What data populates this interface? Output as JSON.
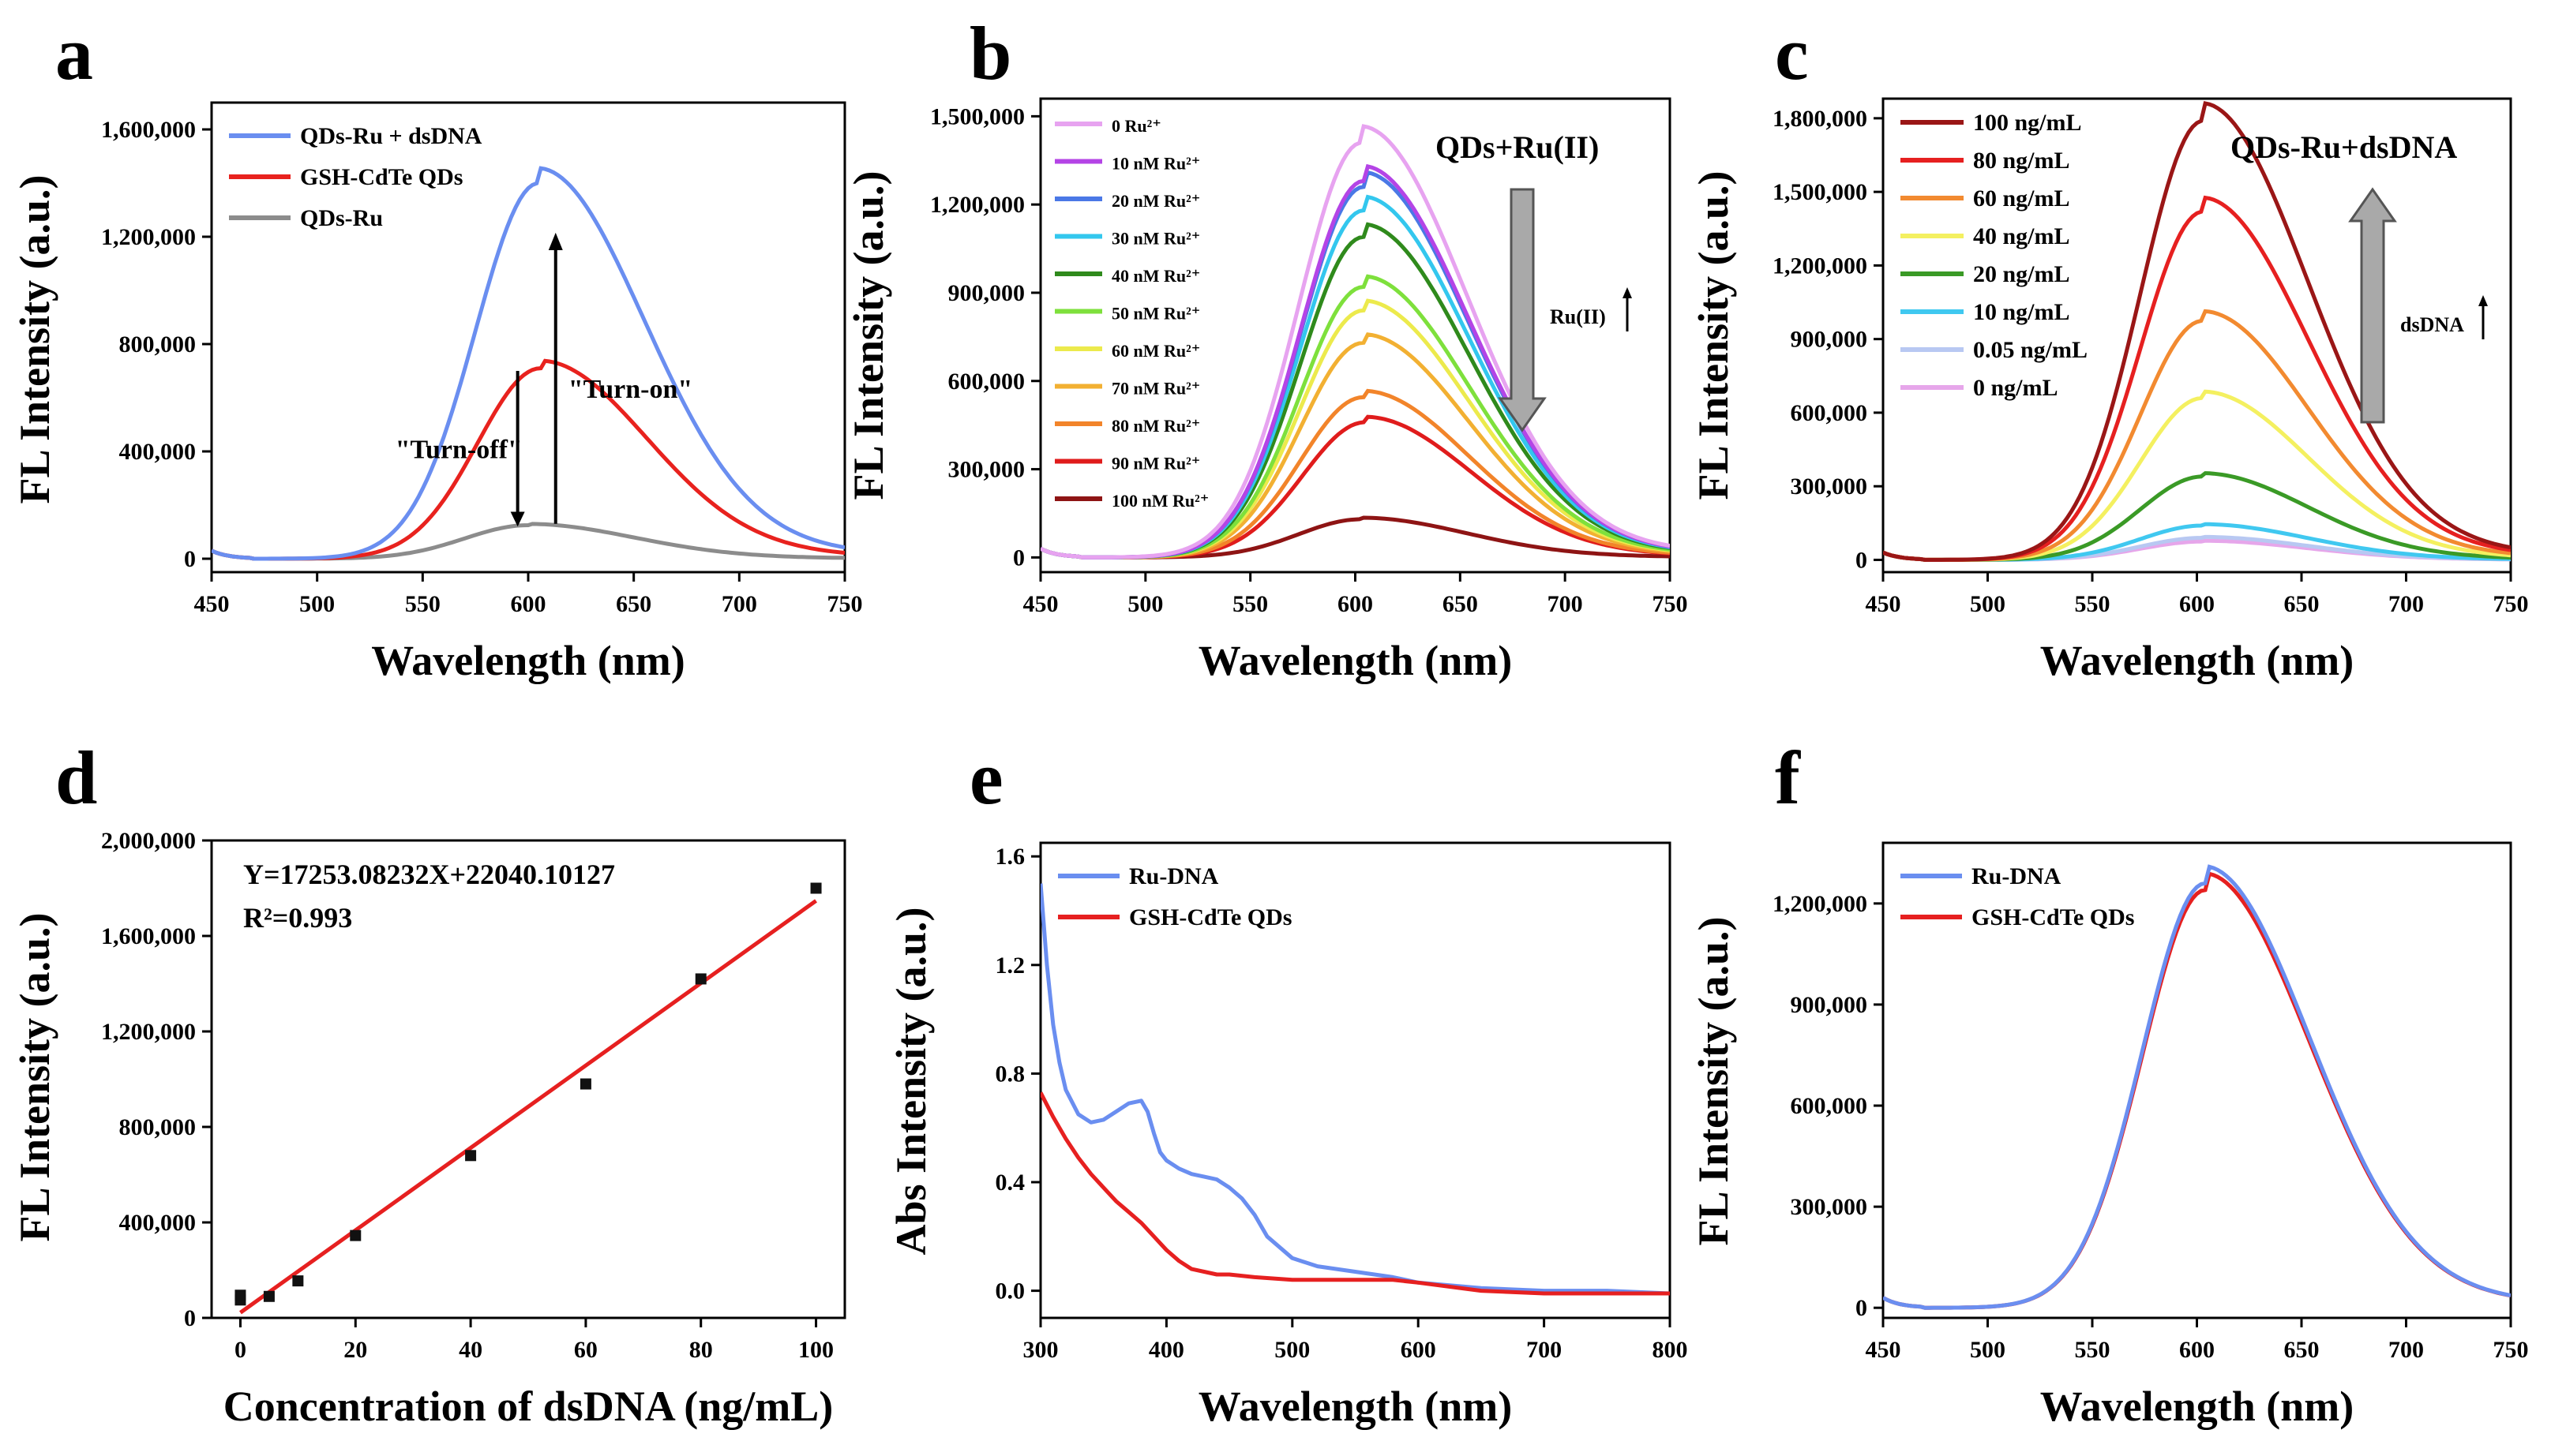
{
  "figure": {
    "panels": [
      {
        "id": "a",
        "letter": "a",
        "type": "line",
        "xlabel": "Wavelength (nm)",
        "ylabel": "FL Intensity (a.u.)",
        "xlim": [
          450,
          750
        ],
        "ylim": [
          -50000,
          1700000
        ],
        "xticks": [
          450,
          500,
          550,
          600,
          650,
          700,
          750
        ],
        "yticks": [
          0,
          400000,
          800000,
          1200000,
          1600000
        ],
        "ytick_labels": [
          "0",
          "400,000",
          "800,000",
          "1,200,000",
          "1,600,000"
        ],
        "legend": [
          {
            "label": "QDs-Ru + dsDNA",
            "color": "#6a8ef0"
          },
          {
            "label": "GSH-CdTe QDs",
            "color": "#e8221e"
          },
          {
            "label": "QDs-Ru",
            "color": "#8c8c8c"
          }
        ],
        "series": [
          {
            "name": "QDs-Ru + dsDNA",
            "color": "#6a8ef0",
            "peak": 1400000,
            "center": 605
          },
          {
            "name": "GSH-CdTe QDs",
            "color": "#e8221e",
            "peak": 710000,
            "center": 606
          },
          {
            "name": "QDs-Ru",
            "color": "#8c8c8c",
            "peak": 125000,
            "center": 600
          }
        ],
        "annotations": [
          "\"Turn-off\"",
          "\"Turn-on\""
        ]
      },
      {
        "id": "b",
        "letter": "b",
        "type": "line",
        "xlabel": "Wavelength (nm)",
        "ylabel": "FL Intensity (a.u.)",
        "xlim": [
          450,
          750
        ],
        "ylim": [
          -50000,
          1560000
        ],
        "xticks": [
          450,
          500,
          550,
          600,
          650,
          700,
          750
        ],
        "yticks": [
          0,
          300000,
          600000,
          900000,
          1200000,
          1500000
        ],
        "ytick_labels": [
          "0",
          "300,000",
          "600,000",
          "900,000",
          "1,200,000",
          "1,500,000"
        ],
        "title": "QDs+Ru(II)",
        "arrow_label": "Ru(II)",
        "legend": [
          {
            "label": "0 Ru²⁺",
            "color": "#e7a3f0"
          },
          {
            "label": "10 nM Ru²⁺",
            "color": "#b444e6"
          },
          {
            "label": "20 nM Ru²⁺",
            "color": "#4a78e6"
          },
          {
            "label": "30 nM Ru²⁺",
            "color": "#33c7ee"
          },
          {
            "label": "40 nM Ru²⁺",
            "color": "#2f8a1c"
          },
          {
            "label": "50 nM Ru²⁺",
            "color": "#7ee03c"
          },
          {
            "label": "60 nM Ru²⁺",
            "color": "#ecea4c"
          },
          {
            "label": "70 nM Ru²⁺",
            "color": "#f2b032"
          },
          {
            "label": "80 nM Ru²⁺",
            "color": "#f2842a"
          },
          {
            "label": "90 nM Ru²⁺",
            "color": "#e01c1c"
          },
          {
            "label": "100 nM Ru²⁺",
            "color": "#8e1414"
          }
        ],
        "series": [
          {
            "name": "0 Ru2+",
            "color": "#e7a3f0",
            "peak": 1410000,
            "center": 603
          },
          {
            "name": "10 nM Ru2+",
            "color": "#b444e6",
            "peak": 1280000,
            "center": 604
          },
          {
            "name": "20 nM Ru2+",
            "color": "#4a78e6",
            "peak": 1260000,
            "center": 604
          },
          {
            "name": "30 nM Ru2+",
            "color": "#33c7ee",
            "peak": 1180000,
            "center": 604
          },
          {
            "name": "40 nM Ru2+",
            "color": "#2f8a1c",
            "peak": 1090000,
            "center": 604
          },
          {
            "name": "50 nM Ru2+",
            "color": "#7ee03c",
            "peak": 920000,
            "center": 604
          },
          {
            "name": "60 nM Ru2+",
            "color": "#ecea4c",
            "peak": 840000,
            "center": 604
          },
          {
            "name": "70 nM Ru2+",
            "color": "#f2b032",
            "peak": 730000,
            "center": 604
          },
          {
            "name": "80 nM Ru2+",
            "color": "#f2842a",
            "peak": 545000,
            "center": 604
          },
          {
            "name": "90 nM Ru2+",
            "color": "#e01c1c",
            "peak": 460000,
            "center": 605
          },
          {
            "name": "100 nM Ru2+",
            "color": "#8e1414",
            "peak": 130000,
            "center": 603
          }
        ]
      },
      {
        "id": "c",
        "letter": "c",
        "type": "line",
        "xlabel": "Wavelength (nm)",
        "ylabel": "FL Intensity (a.u.)",
        "xlim": [
          450,
          750
        ],
        "ylim": [
          -50000,
          1880000
        ],
        "xticks": [
          450,
          500,
          550,
          600,
          650,
          700,
          750
        ],
        "yticks": [
          0,
          300000,
          600000,
          900000,
          1200000,
          1500000,
          1800000
        ],
        "ytick_labels": [
          "0",
          "300,000",
          "600,000",
          "900,000",
          "1,200,000",
          "1,500,000",
          "1,800,000"
        ],
        "title": "QDs-Ru+dsDNA",
        "arrow_label": "dsDNA",
        "legend": [
          {
            "label": "100 ng/mL",
            "color": "#9a1616"
          },
          {
            "label": "80 ng/mL",
            "color": "#e62020"
          },
          {
            "label": "60 ng/mL",
            "color": "#f28a30"
          },
          {
            "label": "40 ng/mL",
            "color": "#f4f060"
          },
          {
            "label": "20 ng/mL",
            "color": "#3a9a26"
          },
          {
            "label": "10 ng/mL",
            "color": "#40c8f0"
          },
          {
            "label": "0.05 ng/mL",
            "color": "#b8c8f2"
          },
          {
            "label": "0 ng/mL",
            "color": "#e6a6ea"
          }
        ],
        "series": [
          {
            "name": "100 ng/mL",
            "color": "#9a1616",
            "peak": 1790000,
            "center": 603
          },
          {
            "name": "80 ng/mL",
            "color": "#e62020",
            "peak": 1420000,
            "center": 603
          },
          {
            "name": "60 ng/mL",
            "color": "#f28a30",
            "peak": 975000,
            "center": 603
          },
          {
            "name": "40 ng/mL",
            "color": "#f4f060",
            "peak": 660000,
            "center": 603
          },
          {
            "name": "20 ng/mL",
            "color": "#3a9a26",
            "peak": 340000,
            "center": 603
          },
          {
            "name": "10 ng/mL",
            "color": "#40c8f0",
            "peak": 140000,
            "center": 603
          },
          {
            "name": "0.05 ng/mL",
            "color": "#b8c8f2",
            "peak": 90000,
            "center": 603
          },
          {
            "name": "0 ng/mL",
            "color": "#e6a6ea",
            "peak": 75000,
            "center": 603
          }
        ]
      },
      {
        "id": "d",
        "letter": "d",
        "type": "scatter",
        "xlabel": "Concentration of dsDNA  (ng/mL)",
        "ylabel": "FL Intensity (a.u.)",
        "xlim": [
          -5,
          105
        ],
        "ylim": [
          0,
          2000000
        ],
        "xticks": [
          0,
          20,
          40,
          60,
          80,
          100
        ],
        "yticks": [
          0,
          400000,
          800000,
          1200000,
          1600000,
          2000000
        ],
        "ytick_labels": [
          "0",
          "400,000",
          "800,000",
          "1,200,000",
          "1,600,000",
          "2,000,000"
        ],
        "equation": "Y=17253.08232X+22040.10127",
        "r2": "R²=0.993",
        "points": {
          "x": [
            0,
            0,
            5,
            10,
            20,
            40,
            60,
            80,
            100
          ],
          "y": [
            75000,
            95000,
            90000,
            155000,
            345000,
            680000,
            980000,
            1420000,
            1800000
          ]
        },
        "fit": {
          "slope": 17253.08232,
          "intercept": 22040.10127,
          "x_range": [
            0,
            100
          ],
          "color": "#e62020"
        },
        "point_color": "#111111"
      },
      {
        "id": "e",
        "letter": "e",
        "type": "line",
        "xlabel": "Wavelength (nm)",
        "ylabel": "Abs Intensity (a.u.)",
        "xlim": [
          300,
          800
        ],
        "ylim": [
          -0.1,
          1.65
        ],
        "xticks": [
          300,
          400,
          500,
          600,
          700,
          800
        ],
        "yticks": [
          0.0,
          0.4,
          0.8,
          1.2,
          1.6
        ],
        "ytick_labels": [
          "0.0",
          "0.4",
          "0.8",
          "1.2",
          "1.6"
        ],
        "legend": [
          {
            "label": "Ru-DNA",
            "color": "#6a8ef0"
          },
          {
            "label": "GSH-CdTe QDs",
            "color": "#e62020"
          }
        ],
        "series": [
          {
            "name": "Ru-DNA",
            "color": "#6a8ef0",
            "x": [
              300,
              305,
              310,
              315,
              320,
              330,
              340,
              350,
              360,
              370,
              380,
              385,
              390,
              395,
              400,
              410,
              420,
              430,
              440,
              450,
              460,
              470,
              480,
              500,
              520,
              550,
              580,
              600,
              650,
              700,
              750,
              800
            ],
            "y": [
              1.5,
              1.2,
              0.98,
              0.84,
              0.74,
              0.65,
              0.62,
              0.63,
              0.66,
              0.69,
              0.7,
              0.66,
              0.58,
              0.51,
              0.48,
              0.45,
              0.43,
              0.42,
              0.41,
              0.38,
              0.34,
              0.28,
              0.2,
              0.12,
              0.09,
              0.07,
              0.05,
              0.03,
              0.01,
              0.0,
              0.0,
              -0.01
            ]
          },
          {
            "name": "GSH-CdTe QDs",
            "color": "#e62020",
            "x": [
              300,
              310,
              320,
              330,
              340,
              350,
              360,
              370,
              380,
              390,
              400,
              410,
              420,
              430,
              440,
              450,
              470,
              500,
              550,
              580,
              600,
              650,
              700,
              750,
              800
            ],
            "y": [
              0.73,
              0.64,
              0.56,
              0.49,
              0.43,
              0.38,
              0.33,
              0.29,
              0.25,
              0.2,
              0.15,
              0.11,
              0.08,
              0.07,
              0.06,
              0.06,
              0.05,
              0.04,
              0.04,
              0.04,
              0.03,
              0.0,
              -0.01,
              -0.01,
              -0.01
            ]
          }
        ]
      },
      {
        "id": "f",
        "letter": "f",
        "type": "line",
        "xlabel": "Wavelength (nm)",
        "ylabel": "FL Intensity (a.u.)",
        "xlim": [
          450,
          750
        ],
        "ylim": [
          -30000,
          1380000
        ],
        "xticks": [
          450,
          500,
          550,
          600,
          650,
          700,
          750
        ],
        "yticks": [
          0,
          300000,
          600000,
          900000,
          1200000
        ],
        "ytick_labels": [
          "0",
          "300,000",
          "600,000",
          "900,000",
          "1,200,000"
        ],
        "legend": [
          {
            "label": "Ru-DNA",
            "color": "#6a8ef0"
          },
          {
            "label": "GSH-CdTe QDs",
            "color": "#e62020"
          }
        ],
        "series": [
          {
            "name": "Ru-DNA",
            "color": "#6a8ef0",
            "peak": 1260000,
            "center": 604
          },
          {
            "name": "GSH-CdTe QDs",
            "color": "#e62020",
            "peak": 1240000,
            "center": 604
          }
        ]
      }
    ]
  }
}
